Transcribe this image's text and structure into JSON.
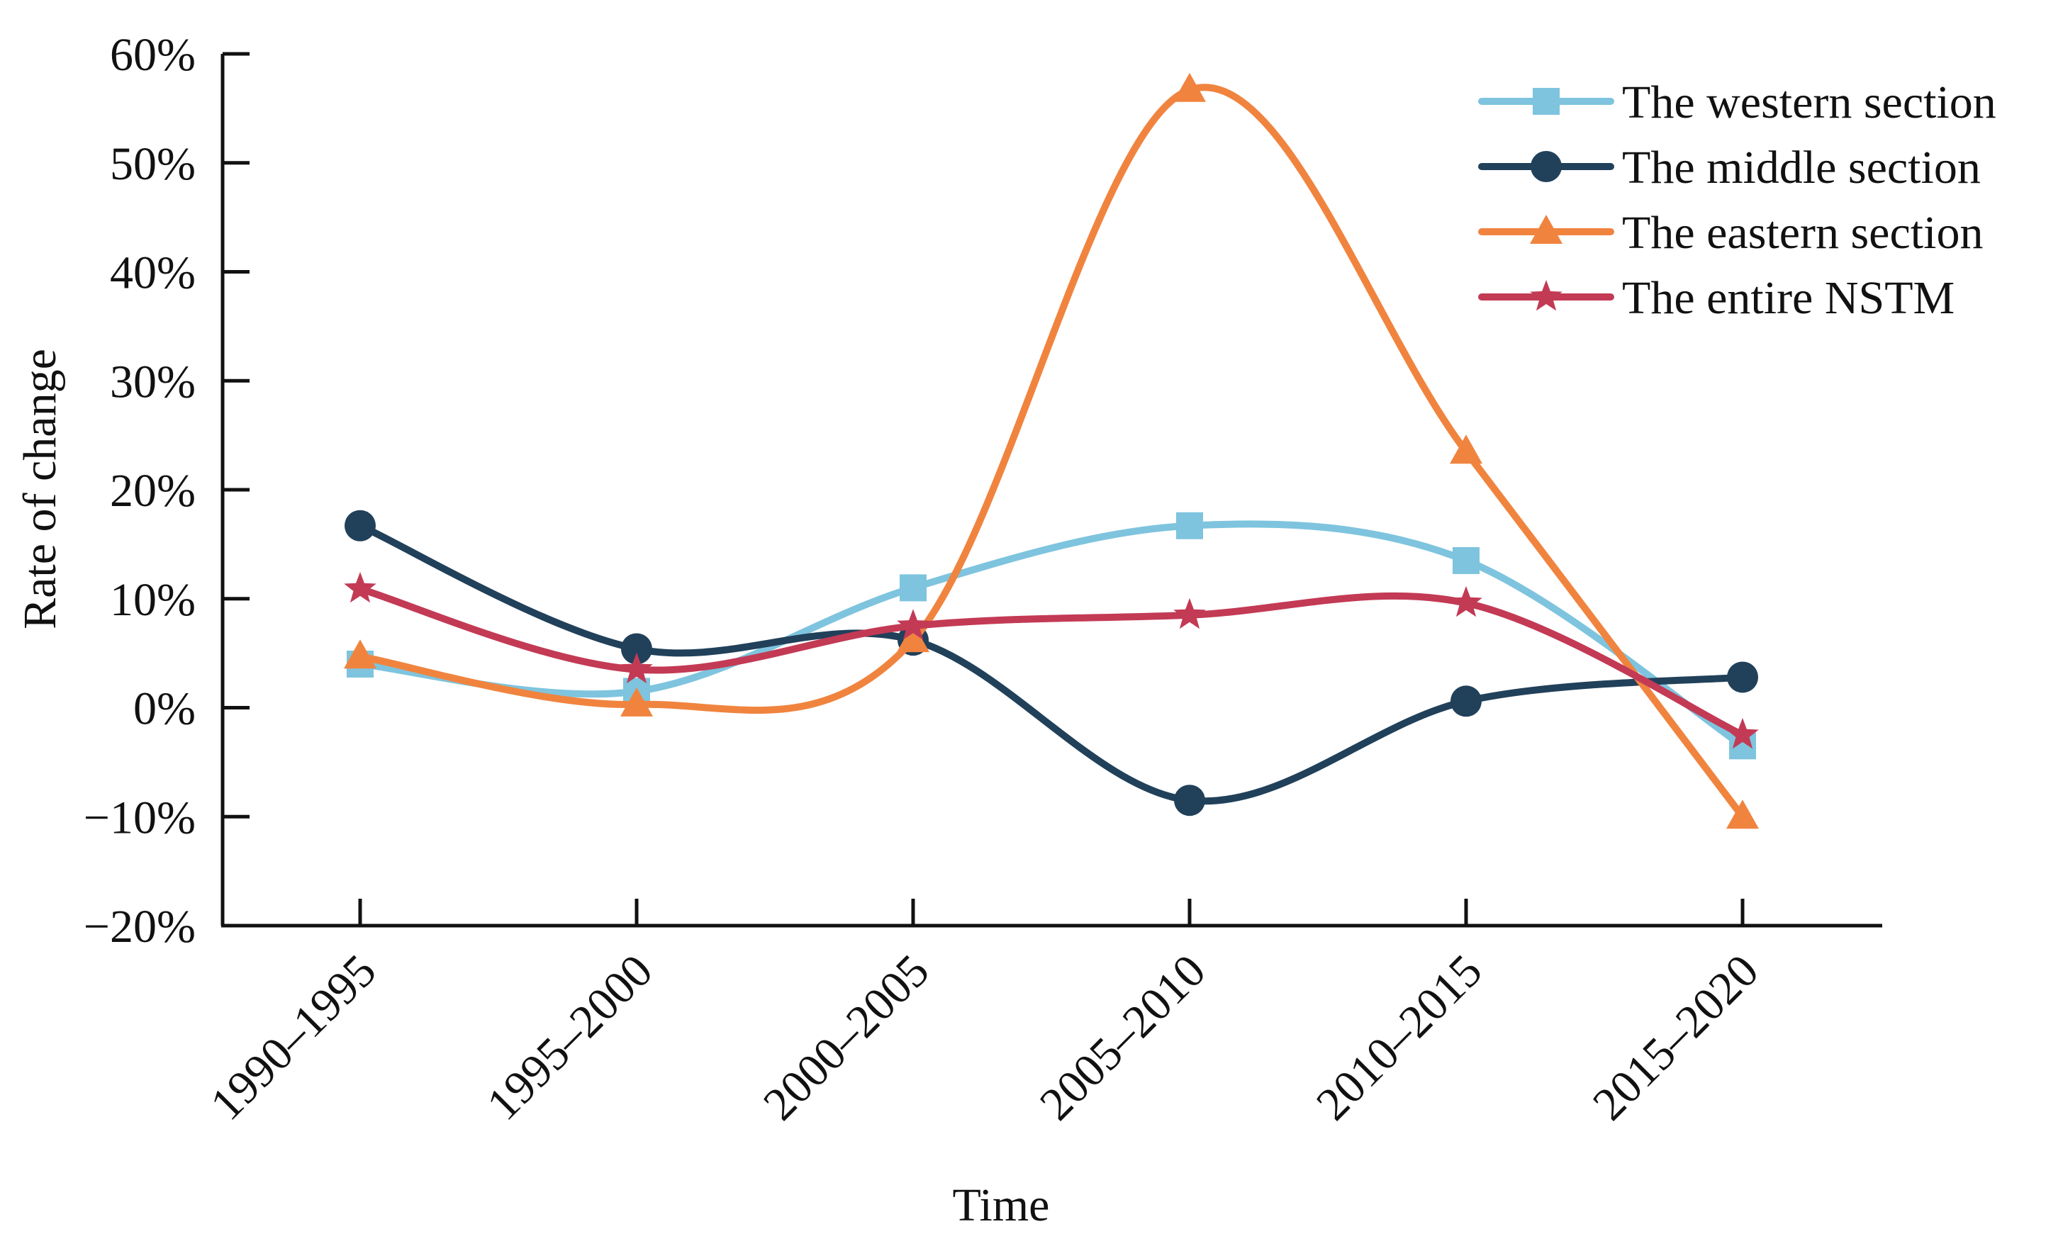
{
  "chart_data": {
    "type": "line",
    "title": "",
    "xlabel": "Time",
    "ylabel": "Rate of change",
    "categories": [
      "1990–1995",
      "1995–2000",
      "2000–2005",
      "2005–2010",
      "2010–2015",
      "2015–2020"
    ],
    "ylim": [
      -20,
      60
    ],
    "yticks": [
      -20,
      -10,
      0,
      10,
      20,
      30,
      40,
      50,
      60
    ],
    "ytick_labels": [
      "−20%",
      "−10%",
      "0%",
      "10%",
      "20%",
      "30%",
      "40%",
      "50%",
      "60%"
    ],
    "legend_position": "top-right",
    "grid": false,
    "series": [
      {
        "name": "The western section",
        "marker": "square",
        "color": "#7ec4de",
        "values": [
          4.0,
          1.5,
          11.0,
          16.7,
          13.5,
          -3.5
        ]
      },
      {
        "name": "The middle section",
        "marker": "circle",
        "color": "#21405a",
        "values": [
          16.7,
          5.4,
          6.2,
          -8.5,
          0.6,
          2.8
        ]
      },
      {
        "name": "The eastern section",
        "marker": "triangle",
        "color": "#f0843f",
        "values": [
          4.7,
          0.3,
          6.2,
          56.7,
          23.5,
          -10.0
        ]
      },
      {
        "name": "The entire NSTM",
        "marker": "star",
        "color": "#c33a55",
        "values": [
          10.9,
          3.5,
          7.5,
          8.5,
          9.6,
          -2.5
        ]
      }
    ]
  }
}
